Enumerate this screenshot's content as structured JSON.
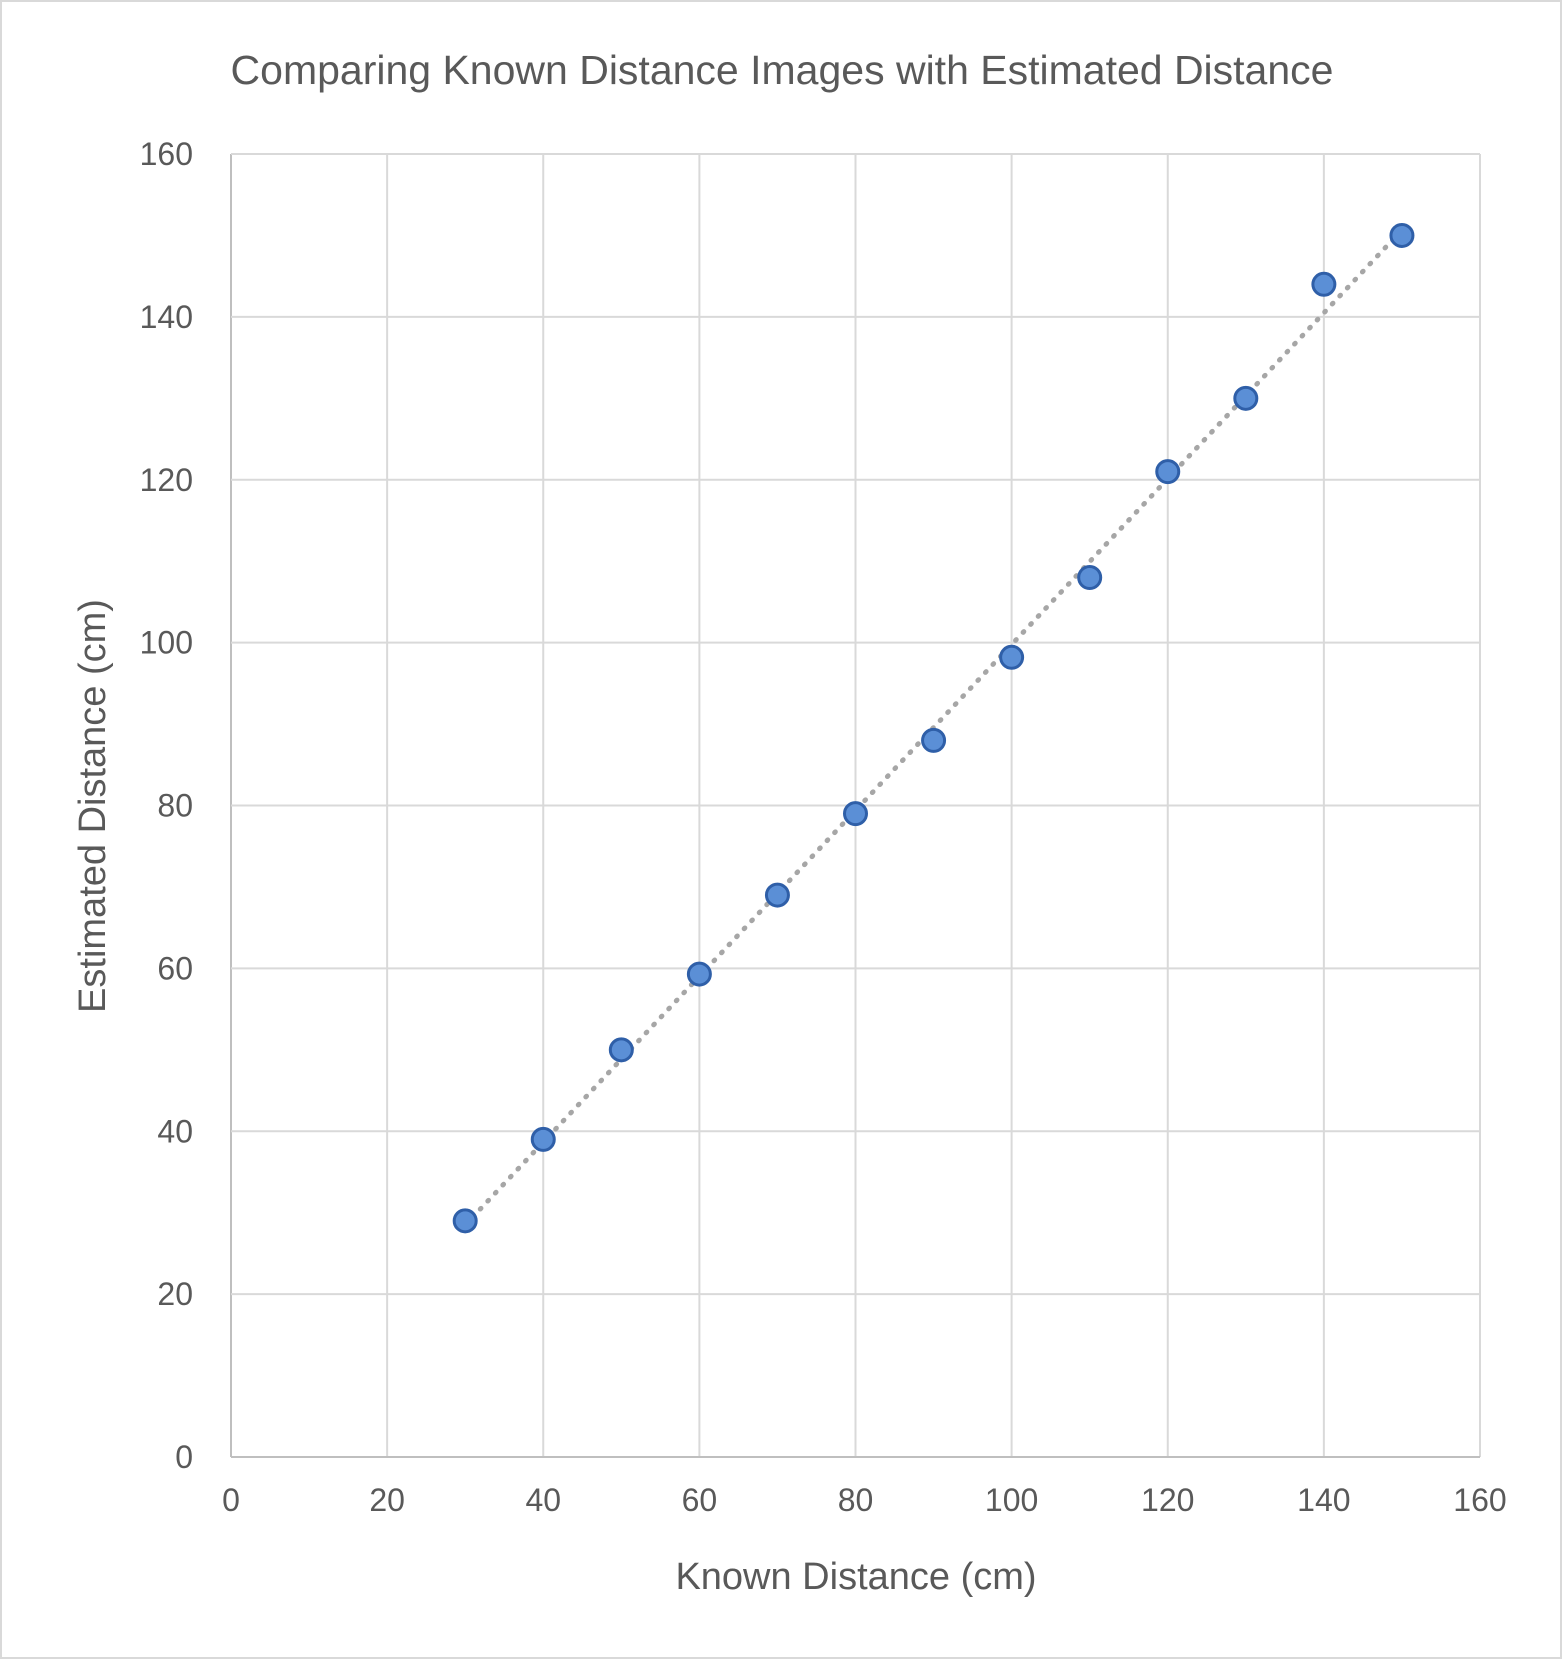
{
  "chart_data": {
    "type": "scatter",
    "title": "Comparing Known Distance Images with Estimated Distance",
    "xlabel": "Known Distance (cm)",
    "ylabel": "Estimated Distance (cm)",
    "xlim": [
      0,
      160
    ],
    "ylim": [
      0,
      160
    ],
    "xticks": [
      "0",
      "20",
      "40",
      "60",
      "80",
      "100",
      "120",
      "140",
      "160"
    ],
    "yticks": [
      "0",
      "20",
      "40",
      "60",
      "80",
      "100",
      "120",
      "140",
      "160"
    ],
    "grid": true,
    "legend": "none",
    "trendline": "linear",
    "point_color": "#5b8fd6",
    "series": [
      {
        "x": [
          30,
          40,
          50,
          60,
          70,
          80,
          90,
          100,
          110,
          120,
          130,
          140,
          150
        ],
        "y": [
          29,
          39,
          50,
          59.3,
          69,
          79,
          88,
          98.2,
          108,
          121,
          130,
          144,
          150
        ]
      }
    ]
  }
}
